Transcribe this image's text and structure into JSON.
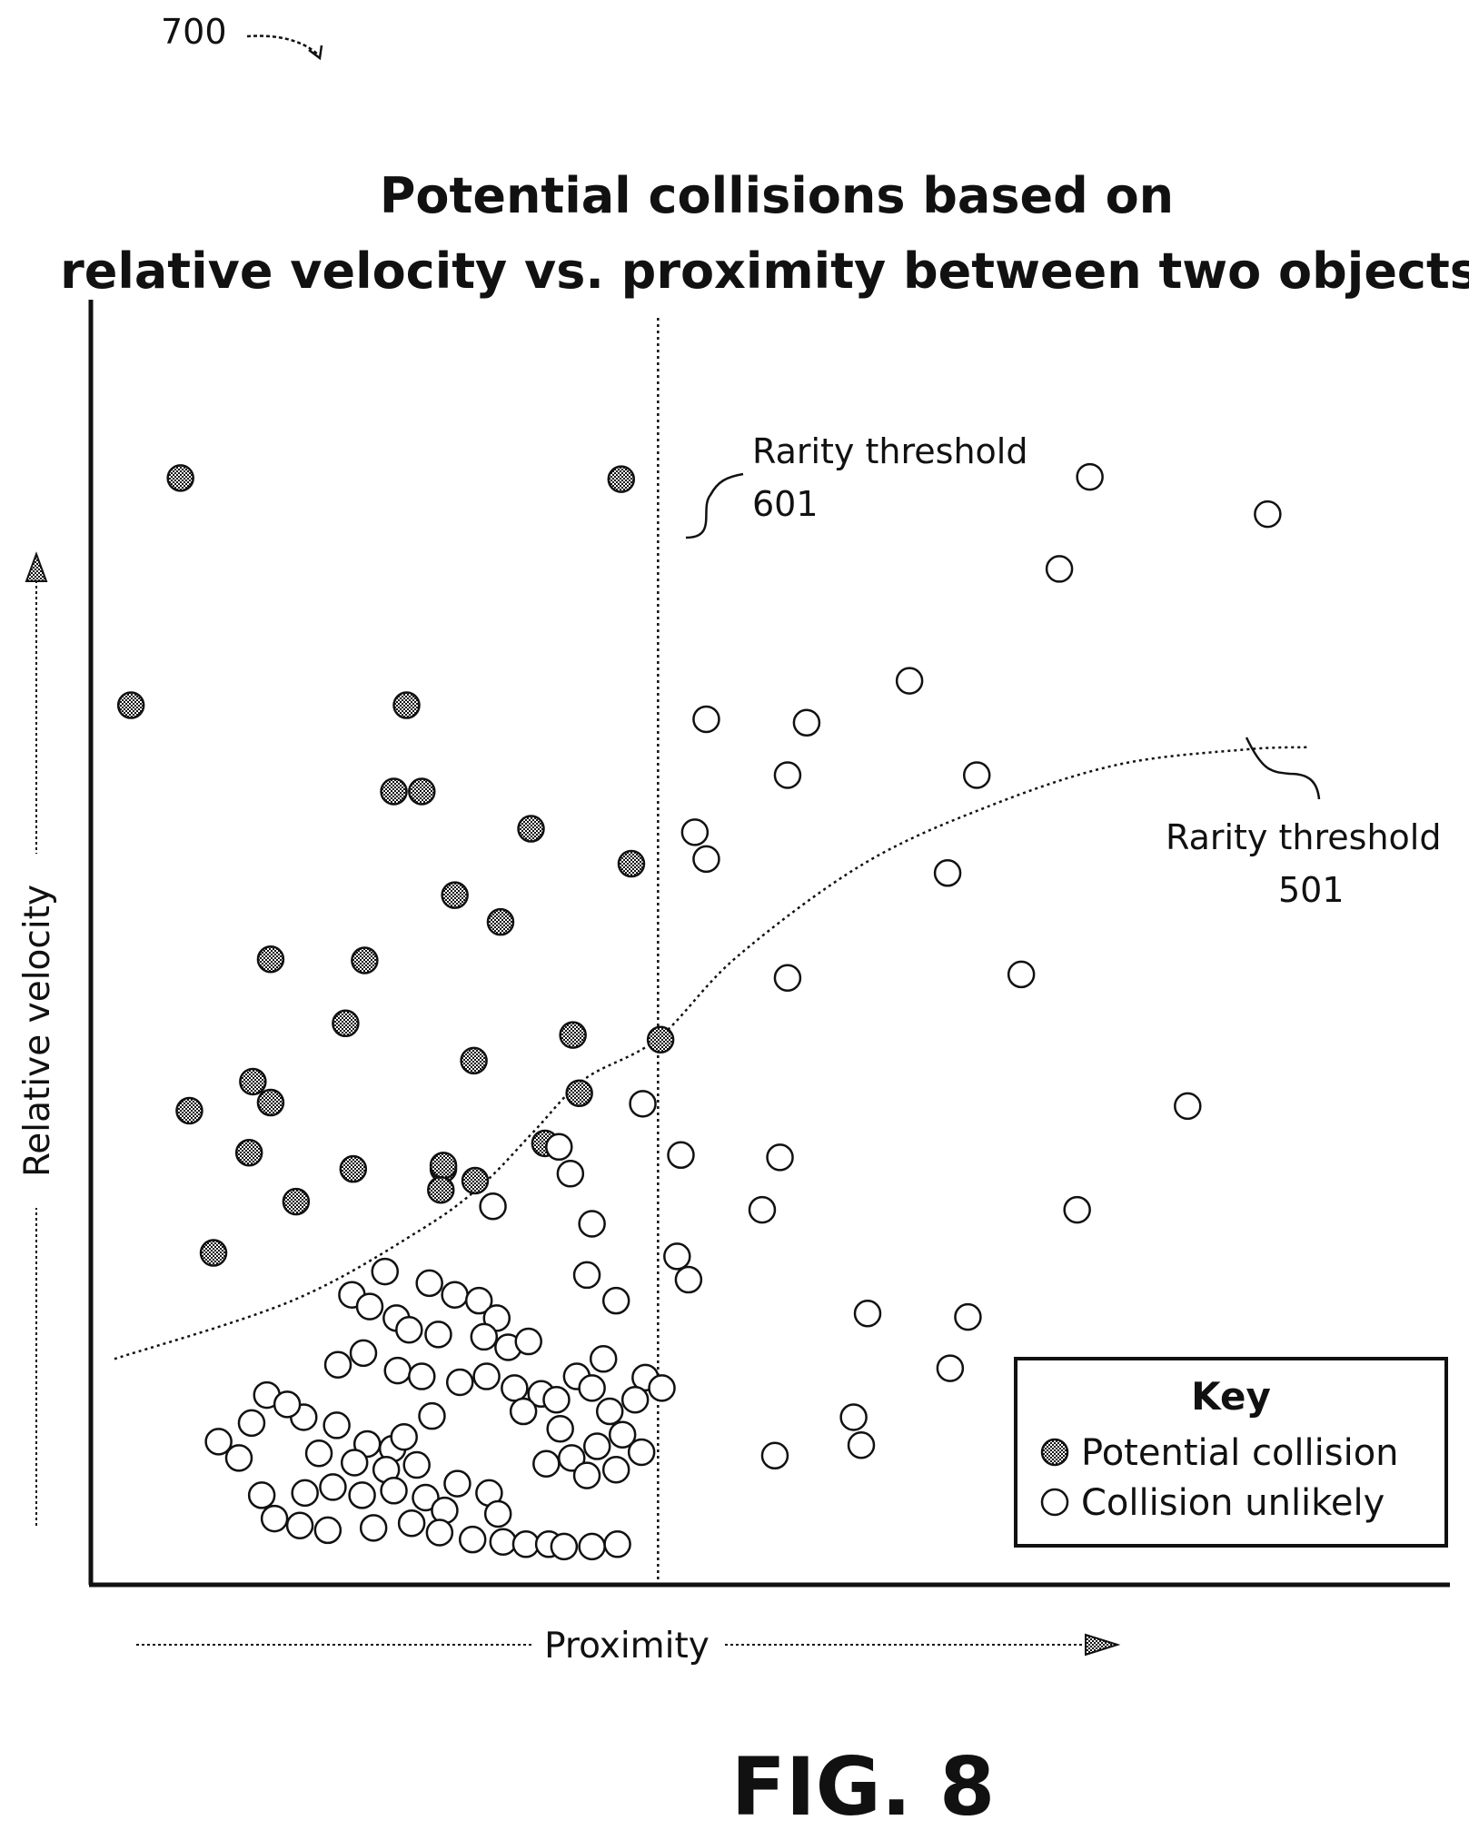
{
  "figure_ref": "700",
  "figure_caption": "FIG. 8",
  "title_lines": [
    "Potential collisions based on",
    "relative velocity vs. proximity between two objects"
  ],
  "colors": {
    "ink": "#111111",
    "potential_fill": "#3a3a3a",
    "unlikely_fill": "#ffffff"
  },
  "chart_data": {
    "type": "scatter",
    "title": "Potential collisions based on relative velocity vs. proximity between two objects",
    "xlabel": "Proximity",
    "ylabel": "Relative velocity",
    "xlim": [
      0,
      100
    ],
    "ylim": [
      0,
      100
    ],
    "grid": false,
    "legend": {
      "title": "Key",
      "placement": "bottom-right"
    },
    "thresholds": [
      {
        "label_line1": "Rarity threshold",
        "label_line2": "601",
        "type": "vertical",
        "x": 43.8
      },
      {
        "label_line1": "Rarity threshold",
        "label_line2": "501",
        "type": "curve",
        "x": [
          1,
          15,
          25,
          30,
          34,
          38,
          43.8,
          50,
          60,
          70,
          80,
          90,
          95
        ],
        "y": [
          16.5,
          21.5,
          27.5,
          31.5,
          36,
          40.5,
          44,
          51,
          59,
          64,
          67.5,
          68.8,
          69
        ]
      }
    ],
    "series": [
      {
        "name": "Potential collision",
        "marker": "filled",
        "points": [
          [
            6.2,
            92.1
          ],
          [
            40.9,
            92.0
          ],
          [
            2.3,
            72.6
          ],
          [
            24.0,
            72.6
          ],
          [
            23.0,
            65.2
          ],
          [
            25.2,
            65.2
          ],
          [
            33.8,
            62.0
          ],
          [
            41.7,
            59.0
          ],
          [
            27.8,
            56.3
          ],
          [
            31.4,
            54.0
          ],
          [
            13.3,
            50.8
          ],
          [
            20.7,
            50.7
          ],
          [
            19.2,
            45.3
          ],
          [
            37.1,
            44.3
          ],
          [
            44.0,
            43.9
          ],
          [
            29.3,
            42.1
          ],
          [
            11.9,
            40.3
          ],
          [
            13.3,
            38.5
          ],
          [
            37.6,
            39.3
          ],
          [
            6.9,
            37.8
          ],
          [
            11.6,
            34.2
          ],
          [
            34.9,
            35.0
          ],
          [
            19.8,
            32.8
          ],
          [
            26.9,
            32.8
          ],
          [
            15.3,
            30.0
          ],
          [
            26.9,
            33.1
          ],
          [
            26.7,
            31.0
          ],
          [
            29.4,
            31.8
          ],
          [
            8.8,
            25.6
          ]
        ]
      },
      {
        "name": "Collision unlikely",
        "marker": "hollow",
        "points": [
          [
            77.8,
            92.2
          ],
          [
            91.8,
            89.0
          ],
          [
            75.4,
            84.3
          ],
          [
            63.6,
            74.7
          ],
          [
            47.6,
            71.4
          ],
          [
            55.5,
            71.1
          ],
          [
            54.0,
            66.6
          ],
          [
            68.9,
            66.6
          ],
          [
            46.7,
            61.7
          ],
          [
            47.6,
            59.4
          ],
          [
            66.6,
            58.2
          ],
          [
            54.0,
            49.2
          ],
          [
            72.4,
            49.5
          ],
          [
            42.6,
            38.4
          ],
          [
            85.5,
            38.2
          ],
          [
            45.6,
            34.0
          ],
          [
            53.4,
            33.8
          ],
          [
            36.0,
            34.7
          ],
          [
            36.9,
            32.4
          ],
          [
            52.0,
            29.3
          ],
          [
            76.8,
            29.3
          ],
          [
            30.8,
            29.6
          ],
          [
            38.6,
            28.1
          ],
          [
            45.3,
            25.3
          ],
          [
            46.2,
            23.3
          ],
          [
            38.2,
            23.7
          ],
          [
            40.5,
            21.5
          ],
          [
            60.3,
            20.4
          ],
          [
            68.2,
            20.1
          ],
          [
            66.8,
            15.7
          ],
          [
            59.2,
            11.5
          ],
          [
            53.0,
            8.2
          ],
          [
            59.8,
            9.1
          ],
          [
            42.8,
            14.9
          ],
          [
            44.1,
            14.0
          ],
          [
            22.3,
            24.0
          ],
          [
            25.8,
            23.0
          ],
          [
            19.7,
            22.0
          ],
          [
            21.1,
            21.0
          ],
          [
            23.2,
            20.0
          ],
          [
            27.8,
            22.0
          ],
          [
            29.7,
            21.5
          ],
          [
            31.1,
            20.0
          ],
          [
            24.2,
            19.0
          ],
          [
            26.5,
            18.6
          ],
          [
            30.1,
            18.4
          ],
          [
            32.0,
            17.5
          ],
          [
            33.6,
            18.0
          ],
          [
            20.6,
            17.0
          ],
          [
            18.6,
            16.0
          ],
          [
            23.3,
            15.5
          ],
          [
            25.2,
            15.0
          ],
          [
            28.2,
            14.5
          ],
          [
            30.3,
            15.0
          ],
          [
            32.5,
            14.0
          ],
          [
            34.6,
            13.5
          ],
          [
            39.5,
            16.5
          ],
          [
            37.4,
            15.0
          ],
          [
            35.8,
            13.0
          ],
          [
            33.2,
            12.0
          ],
          [
            36.1,
            10.5
          ],
          [
            38.6,
            14.0
          ],
          [
            40.0,
            12.0
          ],
          [
            42.0,
            13.0
          ],
          [
            41.0,
            10.0
          ],
          [
            39.0,
            9.0
          ],
          [
            37.0,
            8.0
          ],
          [
            35.0,
            7.5
          ],
          [
            38.2,
            6.5
          ],
          [
            40.5,
            7.0
          ],
          [
            42.5,
            8.5
          ],
          [
            15.9,
            11.5
          ],
          [
            18.5,
            10.8
          ],
          [
            20.9,
            9.2
          ],
          [
            22.9,
            8.8
          ],
          [
            17.1,
            8.4
          ],
          [
            19.9,
            7.6
          ],
          [
            22.4,
            7.0
          ],
          [
            24.8,
            7.4
          ],
          [
            16.0,
            5.0
          ],
          [
            18.2,
            5.5
          ],
          [
            20.5,
            4.8
          ],
          [
            23.0,
            5.2
          ],
          [
            25.5,
            4.6
          ],
          [
            28.0,
            5.8
          ],
          [
            30.5,
            5.0
          ],
          [
            27.0,
            3.5
          ],
          [
            31.2,
            3.2
          ],
          [
            12.6,
            4.8
          ],
          [
            13.6,
            2.8
          ],
          [
            15.6,
            2.2
          ],
          [
            17.8,
            1.8
          ],
          [
            21.4,
            2.0
          ],
          [
            24.4,
            2.4
          ],
          [
            26.6,
            1.6
          ],
          [
            29.2,
            1.0
          ],
          [
            31.6,
            0.8
          ],
          [
            33.4,
            0.6
          ],
          [
            35.2,
            0.6
          ],
          [
            36.4,
            0.4
          ],
          [
            38.6,
            0.4
          ],
          [
            40.6,
            0.6
          ],
          [
            10.8,
            8.0
          ],
          [
            9.2,
            9.4
          ],
          [
            11.8,
            11.0
          ],
          [
            13.0,
            13.4
          ],
          [
            14.6,
            12.6
          ],
          [
            23.8,
            9.8
          ],
          [
            26.0,
            11.6
          ]
        ]
      }
    ]
  }
}
